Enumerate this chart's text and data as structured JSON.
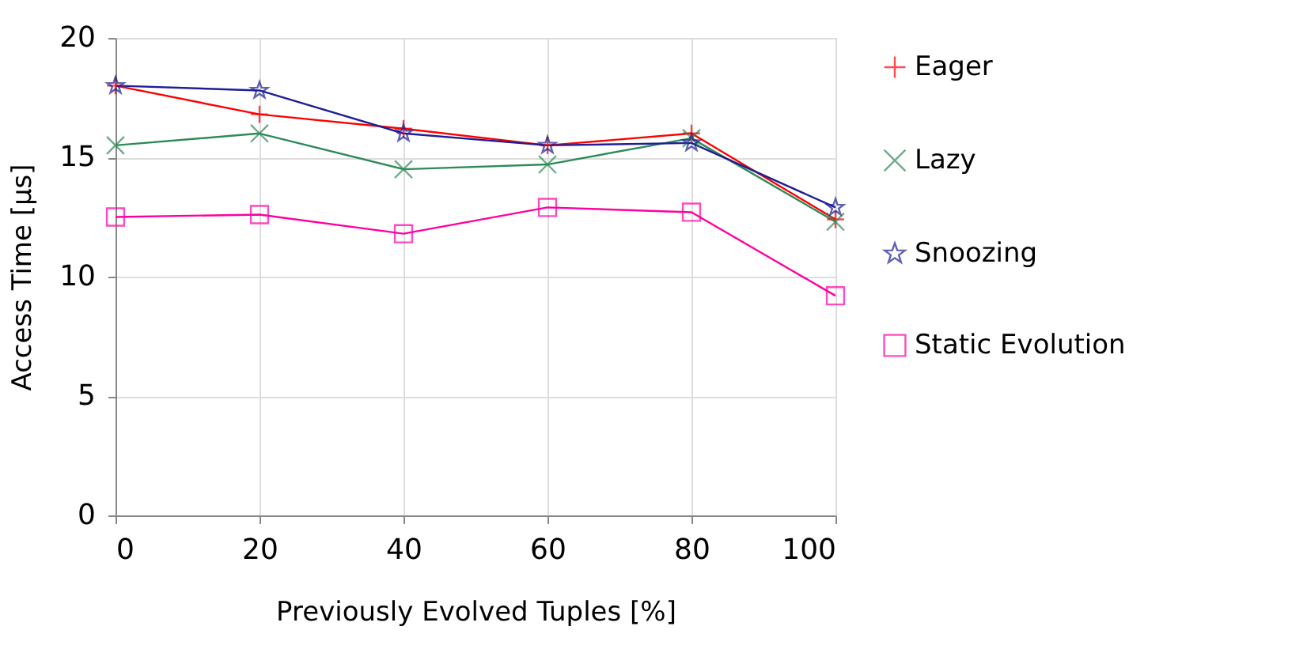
{
  "chart_data": {
    "type": "line",
    "xlabel": "Previously Evolved Tuples [%]",
    "ylabel": "Access Time [µs]",
    "x": [
      0,
      20,
      40,
      60,
      80,
      100
    ],
    "xlim": [
      0,
      100
    ],
    "xticks": [
      0,
      20,
      40,
      60,
      80,
      100
    ],
    "ylim": [
      0,
      20
    ],
    "yticks": [
      0,
      5,
      10,
      15,
      20
    ],
    "grid": true,
    "legend": "right",
    "line_style": "solid",
    "series": [
      {
        "name": "Eager",
        "color": "#ff0000",
        "marker": "plus",
        "values": [
          18.0,
          16.8,
          16.2,
          15.5,
          16.0,
          12.4
        ]
      },
      {
        "name": "Lazy",
        "color": "#2e8b57",
        "marker": "cross",
        "values": [
          15.5,
          16.0,
          14.5,
          14.7,
          15.8,
          12.3
        ]
      },
      {
        "name": "Snoozing",
        "color": "#1e1e96",
        "marker": "star",
        "values": [
          18.0,
          17.8,
          16.0,
          15.5,
          15.6,
          12.9
        ]
      },
      {
        "name": "Static Evolution",
        "color": "#ff00a0",
        "marker": "square",
        "values": [
          12.5,
          12.6,
          11.8,
          12.9,
          12.7,
          9.2
        ]
      }
    ]
  }
}
